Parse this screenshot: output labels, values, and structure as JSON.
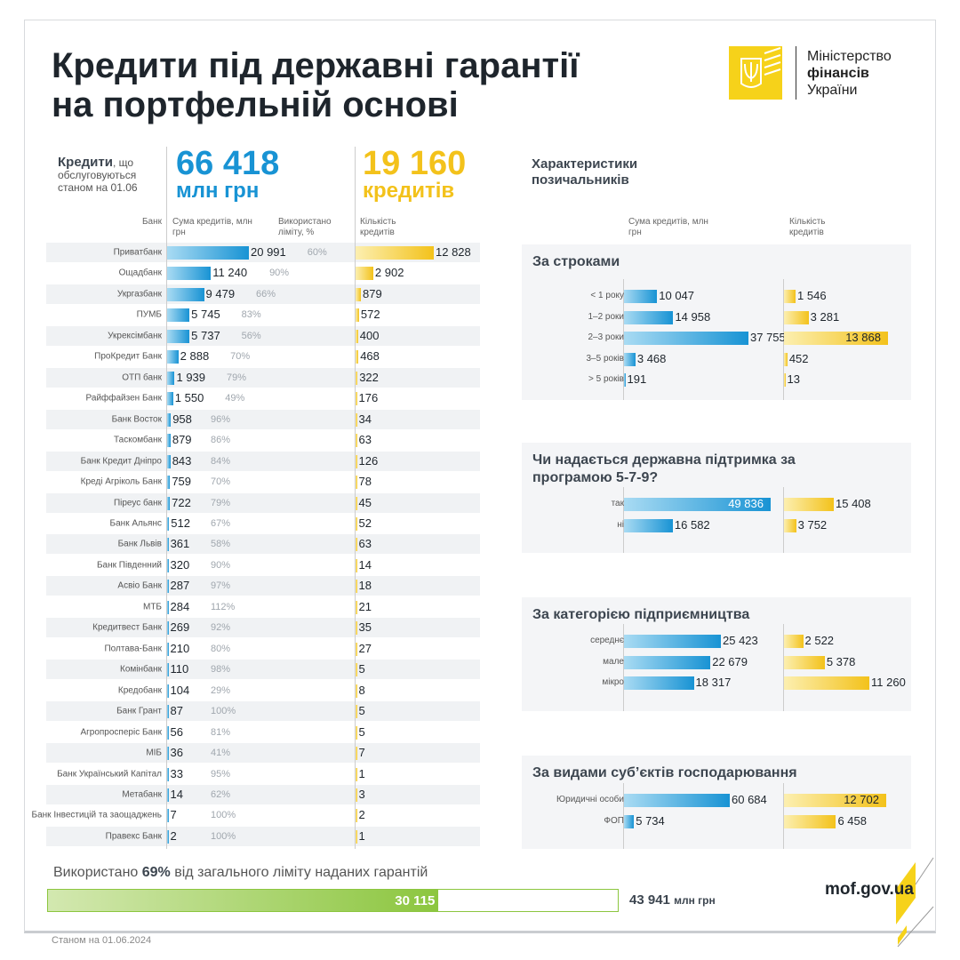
{
  "header": {
    "title_line1": "Кредити під державні гарантії",
    "title_line2": "на портфельній основі"
  },
  "logo": {
    "line1": "Міністерство",
    "line2": "фінансів",
    "line3": "України"
  },
  "summary": {
    "kred_bold": "Кредити",
    "kred_rest": ", що обслуговуються станом на 01.06",
    "total_amount": "66 418",
    "total_amount_unit": "млн грн",
    "total_count": "19 160",
    "total_count_unit": "кредитів"
  },
  "colors": {
    "blue": "#1893d4",
    "yellow": "#f3c21b",
    "green": "#8cc63f"
  },
  "chart_data": [
    {
      "type": "bar",
      "orientation": "horizontal",
      "title": "",
      "headers": {
        "bank": "Банк",
        "amount": "Сума кредитів, млн грн",
        "used": "Використано ліміту, %",
        "count": "Кількість кредитів"
      },
      "rows": [
        {
          "bank": "Приватбанк",
          "amount": 20991,
          "amount_label": "20 991",
          "used": "60%",
          "count": 12828,
          "count_label": "12 828"
        },
        {
          "bank": "Ощадбанк",
          "amount": 11240,
          "amount_label": "11 240",
          "used": "90%",
          "count": 2902,
          "count_label": "2 902"
        },
        {
          "bank": "Укргазбанк",
          "amount": 9479,
          "amount_label": "9 479",
          "used": "66%",
          "count": 879,
          "count_label": "879"
        },
        {
          "bank": "ПУМБ",
          "amount": 5745,
          "amount_label": "5 745",
          "used": "83%",
          "count": 572,
          "count_label": "572"
        },
        {
          "bank": "Укрексімбанк",
          "amount": 5737,
          "amount_label": "5 737",
          "used": "56%",
          "count": 400,
          "count_label": "400"
        },
        {
          "bank": "ПроКредит Банк",
          "amount": 2888,
          "amount_label": "2 888",
          "used": "70%",
          "count": 468,
          "count_label": "468"
        },
        {
          "bank": "ОТП банк",
          "amount": 1939,
          "amount_label": "1 939",
          "used": "79%",
          "count": 322,
          "count_label": "322"
        },
        {
          "bank": "Райффайзен Банк",
          "amount": 1550,
          "amount_label": "1 550",
          "used": "49%",
          "count": 176,
          "count_label": "176"
        },
        {
          "bank": "Банк Восток",
          "amount": 958,
          "amount_label": "958",
          "used": "96%",
          "count": 34,
          "count_label": "34"
        },
        {
          "bank": "Таскомбанк",
          "amount": 879,
          "amount_label": "879",
          "used": "86%",
          "count": 63,
          "count_label": "63"
        },
        {
          "bank": "Банк Кредит Дніпро",
          "amount": 843,
          "amount_label": "843",
          "used": "84%",
          "count": 126,
          "count_label": "126"
        },
        {
          "bank": "Креді Агріколь Банк",
          "amount": 759,
          "amount_label": "759",
          "used": "70%",
          "count": 78,
          "count_label": "78"
        },
        {
          "bank": "Піреус банк",
          "amount": 722,
          "amount_label": "722",
          "used": "79%",
          "count": 45,
          "count_label": "45"
        },
        {
          "bank": "Банк Альянс",
          "amount": 512,
          "amount_label": "512",
          "used": "67%",
          "count": 52,
          "count_label": "52"
        },
        {
          "bank": "Банк Львів",
          "amount": 361,
          "amount_label": "361",
          "used": "58%",
          "count": 63,
          "count_label": "63"
        },
        {
          "bank": "Банк Південний",
          "amount": 320,
          "amount_label": "320",
          "used": "90%",
          "count": 14,
          "count_label": "14"
        },
        {
          "bank": "Асвіо Банк",
          "amount": 287,
          "amount_label": "287",
          "used": "97%",
          "count": 18,
          "count_label": "18"
        },
        {
          "bank": "МТБ",
          "amount": 284,
          "amount_label": "284",
          "used": "112%",
          "count": 21,
          "count_label": "21"
        },
        {
          "bank": "Кредитвест Банк",
          "amount": 269,
          "amount_label": "269",
          "used": "92%",
          "count": 35,
          "count_label": "35"
        },
        {
          "bank": "Полтава-Банк",
          "amount": 210,
          "amount_label": "210",
          "used": "80%",
          "count": 27,
          "count_label": "27"
        },
        {
          "bank": "Комінбанк",
          "amount": 110,
          "amount_label": "110",
          "used": "98%",
          "count": 5,
          "count_label": "5"
        },
        {
          "bank": "Кредобанк",
          "amount": 104,
          "amount_label": "104",
          "used": "29%",
          "count": 8,
          "count_label": "8"
        },
        {
          "bank": "Банк Грант",
          "amount": 87,
          "amount_label": "87",
          "used": "100%",
          "count": 5,
          "count_label": "5"
        },
        {
          "bank": "Агропросперіс Банк",
          "amount": 56,
          "amount_label": "56",
          "used": "81%",
          "count": 5,
          "count_label": "5"
        },
        {
          "bank": "МІБ",
          "amount": 36,
          "amount_label": "36",
          "used": "41%",
          "count": 7,
          "count_label": "7"
        },
        {
          "bank": "Банк Український Капітал",
          "amount": 33,
          "amount_label": "33",
          "used": "95%",
          "count": 1,
          "count_label": "1"
        },
        {
          "bank": "Метабанк",
          "amount": 14,
          "amount_label": "14",
          "used": "62%",
          "count": 3,
          "count_label": "3"
        },
        {
          "bank": "Банк Інвестицій та заощаджень",
          "amount": 7,
          "amount_label": "7",
          "used": "100%",
          "count": 2,
          "count_label": "2"
        },
        {
          "bank": "Правекс Банк",
          "amount": 2,
          "amount_label": "2",
          "used": "100%",
          "count": 1,
          "count_label": "1"
        }
      ]
    },
    {
      "type": "bar",
      "orientation": "horizontal",
      "section_title": "Характеристики позичальників",
      "headers": {
        "amount": "Сума кредитів, млн грн",
        "count": "Кількість кредитів"
      },
      "panels": [
        {
          "title": "За строками",
          "rows": [
            {
              "label": "< 1 року",
              "amount": 10047,
              "amount_label": "10 047",
              "count": 1546,
              "count_label": "1 546"
            },
            {
              "label": "1–2 роки",
              "amount": 14958,
              "amount_label": "14 958",
              "count": 3281,
              "count_label": "3 281"
            },
            {
              "label": "2–3 роки",
              "amount": 37755,
              "amount_label": "37 755",
              "count": 13868,
              "count_label": "13 868"
            },
            {
              "label": "3–5 років",
              "amount": 3468,
              "amount_label": "3 468",
              "count": 452,
              "count_label": "452"
            },
            {
              "label": "> 5 років",
              "amount": 191,
              "amount_label": "191",
              "count": 13,
              "count_label": "13"
            }
          ]
        },
        {
          "title": "Чи надається державна підтримка за програмою 5-7-9?",
          "rows": [
            {
              "label": "так",
              "amount": 49836,
              "amount_label": "49 836",
              "count": 15408,
              "count_label": "15 408"
            },
            {
              "label": "ні",
              "amount": 16582,
              "amount_label": "16 582",
              "count": 3752,
              "count_label": "3 752"
            }
          ]
        },
        {
          "title": "За категорією підприємництва",
          "rows": [
            {
              "label": "середнє",
              "amount": 25423,
              "amount_label": "25 423",
              "count": 2522,
              "count_label": "2 522"
            },
            {
              "label": "мале",
              "amount": 22679,
              "amount_label": "22 679",
              "count": 5378,
              "count_label": "5 378"
            },
            {
              "label": "мікро",
              "amount": 18317,
              "amount_label": "18 317",
              "count": 11260,
              "count_label": "11 260"
            }
          ]
        },
        {
          "title": "За видами суб’єктів господарювання",
          "rows": [
            {
              "label": "Юридичні особи",
              "amount": 60684,
              "amount_label": "60 684",
              "count": 12702,
              "count_label": "12 702"
            },
            {
              "label": "ФОП",
              "amount": 5734,
              "amount_label": "5 734",
              "count": 6458,
              "count_label": "6 458"
            }
          ]
        }
      ]
    }
  ],
  "limit": {
    "text_before": "Використано ",
    "percent": "69%",
    "text_after": " від загального ліміту наданих гарантій",
    "used": 30115,
    "used_label": "30 115",
    "total": 43941,
    "total_label": "43 941",
    "unit": "млн грн"
  },
  "footer": {
    "site": "mof.gov.ua",
    "date": "Станом на 01.06.2024"
  }
}
